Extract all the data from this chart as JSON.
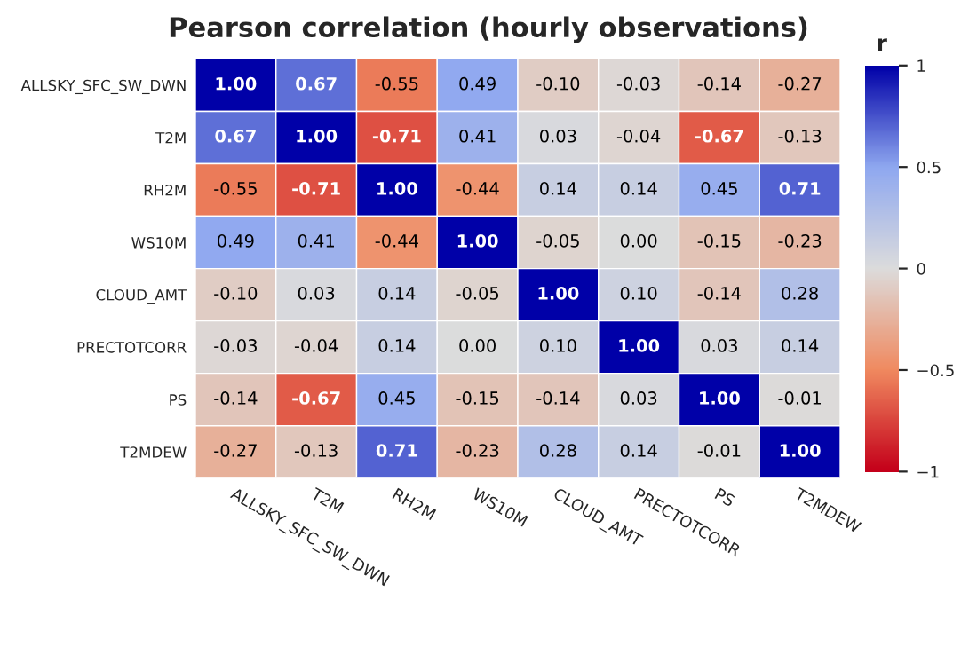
{
  "chart_data": {
    "type": "heatmap",
    "title": "Pearson correlation (hourly observations)",
    "clabel": "r",
    "categories": [
      "ALLSKY_SFC_SW_DWN",
      "T2M",
      "RH2M",
      "WS10M",
      "CLOUD_AMT",
      "PRECTOTCORR",
      "PS",
      "T2MDEW"
    ],
    "y_categories": [
      "ALLSKY_SFC_SW_DWN",
      "T2M",
      "RH2M",
      "WS10M",
      "CLOUD_AMT",
      "PRECTOTCORR",
      "PS",
      "T2MDEW"
    ],
    "cells": [
      [
        1.0,
        0.67,
        -0.55,
        0.49,
        -0.1,
        -0.03,
        -0.14,
        -0.27
      ],
      [
        0.67,
        1.0,
        -0.71,
        0.41,
        0.03,
        -0.04,
        -0.67,
        -0.13
      ],
      [
        -0.55,
        -0.71,
        1.0,
        -0.44,
        0.14,
        0.14,
        0.45,
        0.71
      ],
      [
        0.49,
        0.41,
        -0.44,
        1.0,
        -0.05,
        0.0,
        -0.15,
        -0.23
      ],
      [
        -0.1,
        0.03,
        0.14,
        -0.05,
        1.0,
        0.1,
        -0.14,
        0.28
      ],
      [
        -0.03,
        -0.04,
        0.14,
        0.0,
        0.1,
        1.0,
        0.03,
        0.14
      ],
      [
        -0.14,
        -0.67,
        0.45,
        -0.15,
        -0.14,
        0.03,
        1.0,
        -0.01
      ],
      [
        -0.27,
        -0.13,
        0.71,
        -0.23,
        0.28,
        0.14,
        -0.01,
        1.0
      ]
    ],
    "cell_labels": [
      [
        "1.00",
        "0.67",
        "-0.55",
        "0.49",
        "-0.10",
        "-0.03",
        "-0.14",
        "-0.27"
      ],
      [
        "0.67",
        "1.00",
        "-0.71",
        "0.41",
        "0.03",
        "-0.04",
        "-0.67",
        "-0.13"
      ],
      [
        "-0.55",
        "-0.71",
        "1.00",
        "-0.44",
        "0.14",
        "0.14",
        "0.45",
        "0.71"
      ],
      [
        "0.49",
        "0.41",
        "-0.44",
        "1.00",
        "-0.05",
        "0.00",
        "-0.15",
        "-0.23"
      ],
      [
        "-0.10",
        "0.03",
        "0.14",
        "-0.05",
        "1.00",
        "0.10",
        "-0.14",
        "0.28"
      ],
      [
        "-0.03",
        "-0.04",
        "0.14",
        "0.00",
        "0.10",
        "1.00",
        "0.03",
        "0.14"
      ],
      [
        "-0.14",
        "-0.67",
        "0.45",
        "-0.15",
        "-0.14",
        "0.03",
        "1.00",
        "-0.01"
      ],
      [
        "-0.27",
        "-0.13",
        "0.71",
        "-0.23",
        "0.28",
        "0.14",
        "-0.01",
        "1.00"
      ]
    ],
    "clim": [
      -1,
      1
    ],
    "cticks": [
      {
        "value": -1,
        "label": "−1"
      },
      {
        "value": -0.5,
        "label": "−0.5"
      },
      0,
      0.5,
      1
    ]
  }
}
